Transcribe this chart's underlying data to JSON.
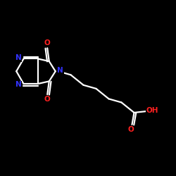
{
  "background_color": "#000000",
  "bond_color": "#ffffff",
  "atom_colors": {
    "N": "#3333ff",
    "O": "#ff2020",
    "C": "#ffffff"
  },
  "fig_bg": "#000000",
  "lw": 1.6,
  "fontsize": 7.5
}
